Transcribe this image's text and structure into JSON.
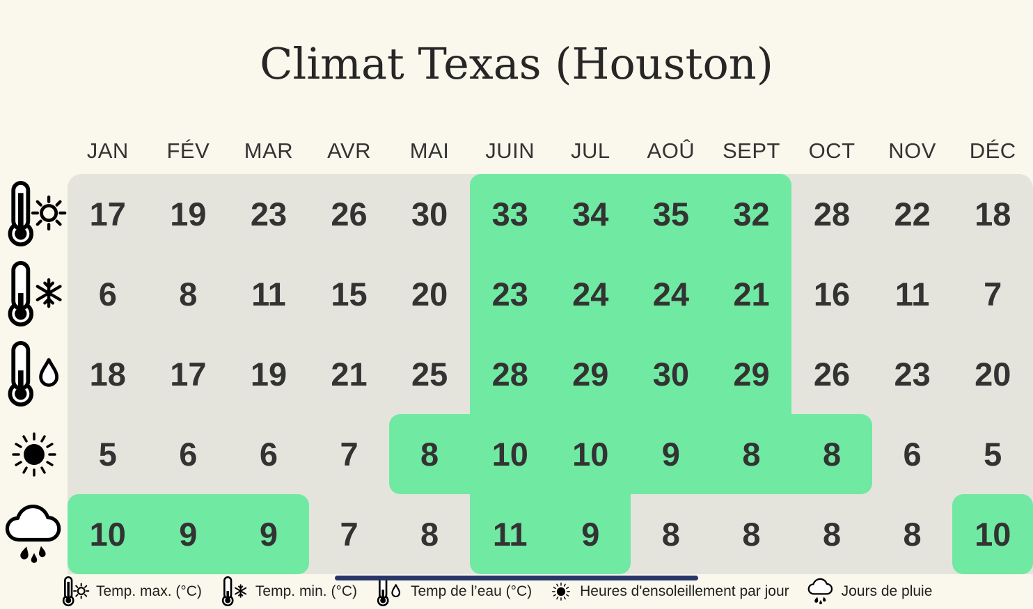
{
  "title": "Climat Texas (Houston)",
  "colors": {
    "background": "#faf7ec",
    "cell": "#e5e4dc",
    "highlight": "#70e9a2",
    "text": "#333333",
    "bottom_bar": "#283568"
  },
  "chart_data": {
    "type": "table",
    "title": "Climat Texas (Houston)",
    "categories": [
      "JAN",
      "FÉV",
      "MAR",
      "AVR",
      "MAI",
      "JUIN",
      "JUL",
      "AOÛ",
      "SEPT",
      "OCT",
      "NOV",
      "DÉC"
    ],
    "legend_position": "bottom",
    "highlight_color_meaning": "green cells mark highlighted months",
    "series": [
      {
        "name": "Temp. max. (°C)",
        "icon": "thermometer-sun-icon",
        "values": [
          17,
          19,
          23,
          26,
          30,
          33,
          34,
          35,
          32,
          28,
          22,
          18
        ],
        "highlighted": [
          5,
          6,
          7,
          8
        ]
      },
      {
        "name": "Temp. min. (°C)",
        "icon": "thermometer-snowflake-icon",
        "values": [
          6,
          8,
          11,
          15,
          20,
          23,
          24,
          24,
          21,
          16,
          11,
          7
        ],
        "highlighted": [
          5,
          6,
          7,
          8
        ]
      },
      {
        "name": "Temp de l’eau (°C)",
        "icon": "thermometer-drop-icon",
        "values": [
          18,
          17,
          19,
          21,
          25,
          28,
          29,
          30,
          29,
          26,
          23,
          20
        ],
        "highlighted": [
          5,
          6,
          7,
          8
        ]
      },
      {
        "name": "Heures d'ensoleillement par jour",
        "icon": "sun-icon",
        "values": [
          5,
          6,
          6,
          7,
          8,
          10,
          10,
          9,
          8,
          8,
          6,
          5
        ],
        "highlighted": [
          4,
          5,
          6,
          7,
          8,
          9
        ]
      },
      {
        "name": "Jours de pluie",
        "icon": "rain-cloud-icon",
        "values": [
          10,
          9,
          9,
          7,
          8,
          11,
          9,
          8,
          8,
          8,
          8,
          10
        ],
        "highlighted": [
          0,
          1,
          2,
          5,
          6,
          11
        ]
      }
    ]
  },
  "legend": {
    "items": [
      {
        "icon": "thermometer-sun-icon",
        "label": "Temp. max. (°C)"
      },
      {
        "icon": "thermometer-snowflake-icon",
        "label": "Temp. min. (°C)"
      },
      {
        "icon": "thermometer-drop-icon",
        "label": "Temp de l’eau (°C)"
      },
      {
        "icon": "sun-icon",
        "label": "Heures d'ensoleillement par jour"
      },
      {
        "icon": "rain-cloud-icon",
        "label": "Jours de pluie"
      }
    ]
  }
}
